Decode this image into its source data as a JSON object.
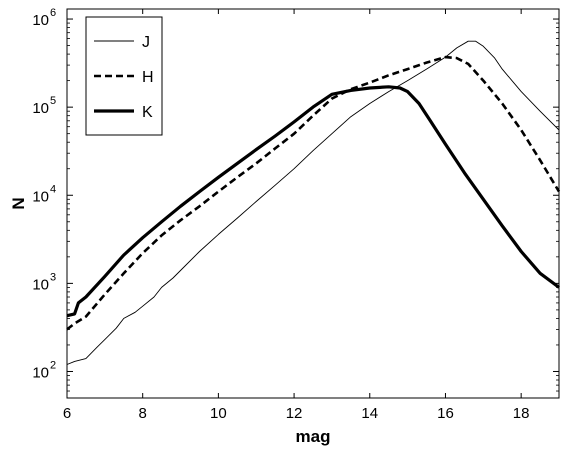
{
  "chart_data": {
    "type": "line",
    "xlabel": "mag",
    "ylabel": "N",
    "xlim": [
      6,
      19
    ],
    "ylim": [
      50,
      1300000
    ],
    "yscale": "log",
    "xticks": [
      6,
      8,
      10,
      12,
      14,
      16,
      18
    ],
    "xtick_labels": [
      "6",
      "8",
      "10",
      "12",
      "14",
      "16",
      "18"
    ],
    "ytick_exponents": [
      2,
      3,
      4,
      5,
      6
    ],
    "ytick_base": "10",
    "grid": false,
    "legend_position": "top-left",
    "series": [
      {
        "name": "J",
        "style": "thin-solid",
        "points": [
          [
            6.0,
            120
          ],
          [
            6.2,
            130
          ],
          [
            6.5,
            140
          ],
          [
            6.8,
            190
          ],
          [
            7.0,
            230
          ],
          [
            7.3,
            310
          ],
          [
            7.5,
            400
          ],
          [
            7.8,
            470
          ],
          [
            8.0,
            550
          ],
          [
            8.3,
            700
          ],
          [
            8.5,
            900
          ],
          [
            8.8,
            1150
          ],
          [
            9.0,
            1400
          ],
          [
            9.5,
            2300
          ],
          [
            10.0,
            3600
          ],
          [
            10.5,
            5500
          ],
          [
            11.0,
            8500
          ],
          [
            11.5,
            13000
          ],
          [
            12.0,
            20000
          ],
          [
            12.5,
            32000
          ],
          [
            13.0,
            50000
          ],
          [
            13.5,
            78000
          ],
          [
            14.0,
            110000
          ],
          [
            14.5,
            150000
          ],
          [
            15.0,
            200000
          ],
          [
            15.5,
            270000
          ],
          [
            16.0,
            370000
          ],
          [
            16.3,
            470000
          ],
          [
            16.6,
            560000
          ],
          [
            16.8,
            560000
          ],
          [
            17.0,
            490000
          ],
          [
            17.3,
            360000
          ],
          [
            17.5,
            270000
          ],
          [
            18.0,
            150000
          ],
          [
            18.5,
            90000
          ],
          [
            19.0,
            55000
          ]
        ]
      },
      {
        "name": "H",
        "style": "dashed",
        "points": [
          [
            6.0,
            300
          ],
          [
            6.2,
            350
          ],
          [
            6.5,
            420
          ],
          [
            7.0,
            750
          ],
          [
            7.5,
            1300
          ],
          [
            8.0,
            2200
          ],
          [
            8.5,
            3500
          ],
          [
            9.0,
            5200
          ],
          [
            9.5,
            7500
          ],
          [
            10.0,
            11000
          ],
          [
            10.5,
            16000
          ],
          [
            11.0,
            23000
          ],
          [
            11.5,
            34000
          ],
          [
            12.0,
            50000
          ],
          [
            12.5,
            80000
          ],
          [
            13.0,
            125000
          ],
          [
            13.5,
            160000
          ],
          [
            14.0,
            190000
          ],
          [
            14.5,
            230000
          ],
          [
            15.0,
            270000
          ],
          [
            15.5,
            320000
          ],
          [
            16.0,
            370000
          ],
          [
            16.3,
            360000
          ],
          [
            16.6,
            310000
          ],
          [
            17.0,
            200000
          ],
          [
            17.5,
            110000
          ],
          [
            18.0,
            55000
          ],
          [
            18.5,
            25000
          ],
          [
            19.0,
            11000
          ]
        ]
      },
      {
        "name": "K",
        "style": "thick-solid",
        "points": [
          [
            6.0,
            430
          ],
          [
            6.2,
            450
          ],
          [
            6.3,
            600
          ],
          [
            6.5,
            700
          ],
          [
            7.0,
            1200
          ],
          [
            7.5,
            2100
          ],
          [
            8.0,
            3300
          ],
          [
            8.5,
            5000
          ],
          [
            9.0,
            7500
          ],
          [
            9.5,
            11000
          ],
          [
            10.0,
            16000
          ],
          [
            10.5,
            23000
          ],
          [
            11.0,
            33000
          ],
          [
            11.5,
            47000
          ],
          [
            12.0,
            68000
          ],
          [
            12.5,
            100000
          ],
          [
            13.0,
            140000
          ],
          [
            13.5,
            155000
          ],
          [
            14.0,
            165000
          ],
          [
            14.5,
            170000
          ],
          [
            14.8,
            165000
          ],
          [
            15.0,
            150000
          ],
          [
            15.3,
            110000
          ],
          [
            15.6,
            70000
          ],
          [
            16.0,
            38000
          ],
          [
            16.5,
            18000
          ],
          [
            17.0,
            9000
          ],
          [
            17.5,
            4500
          ],
          [
            18.0,
            2300
          ],
          [
            18.5,
            1300
          ],
          [
            19.0,
            900
          ]
        ]
      }
    ]
  }
}
